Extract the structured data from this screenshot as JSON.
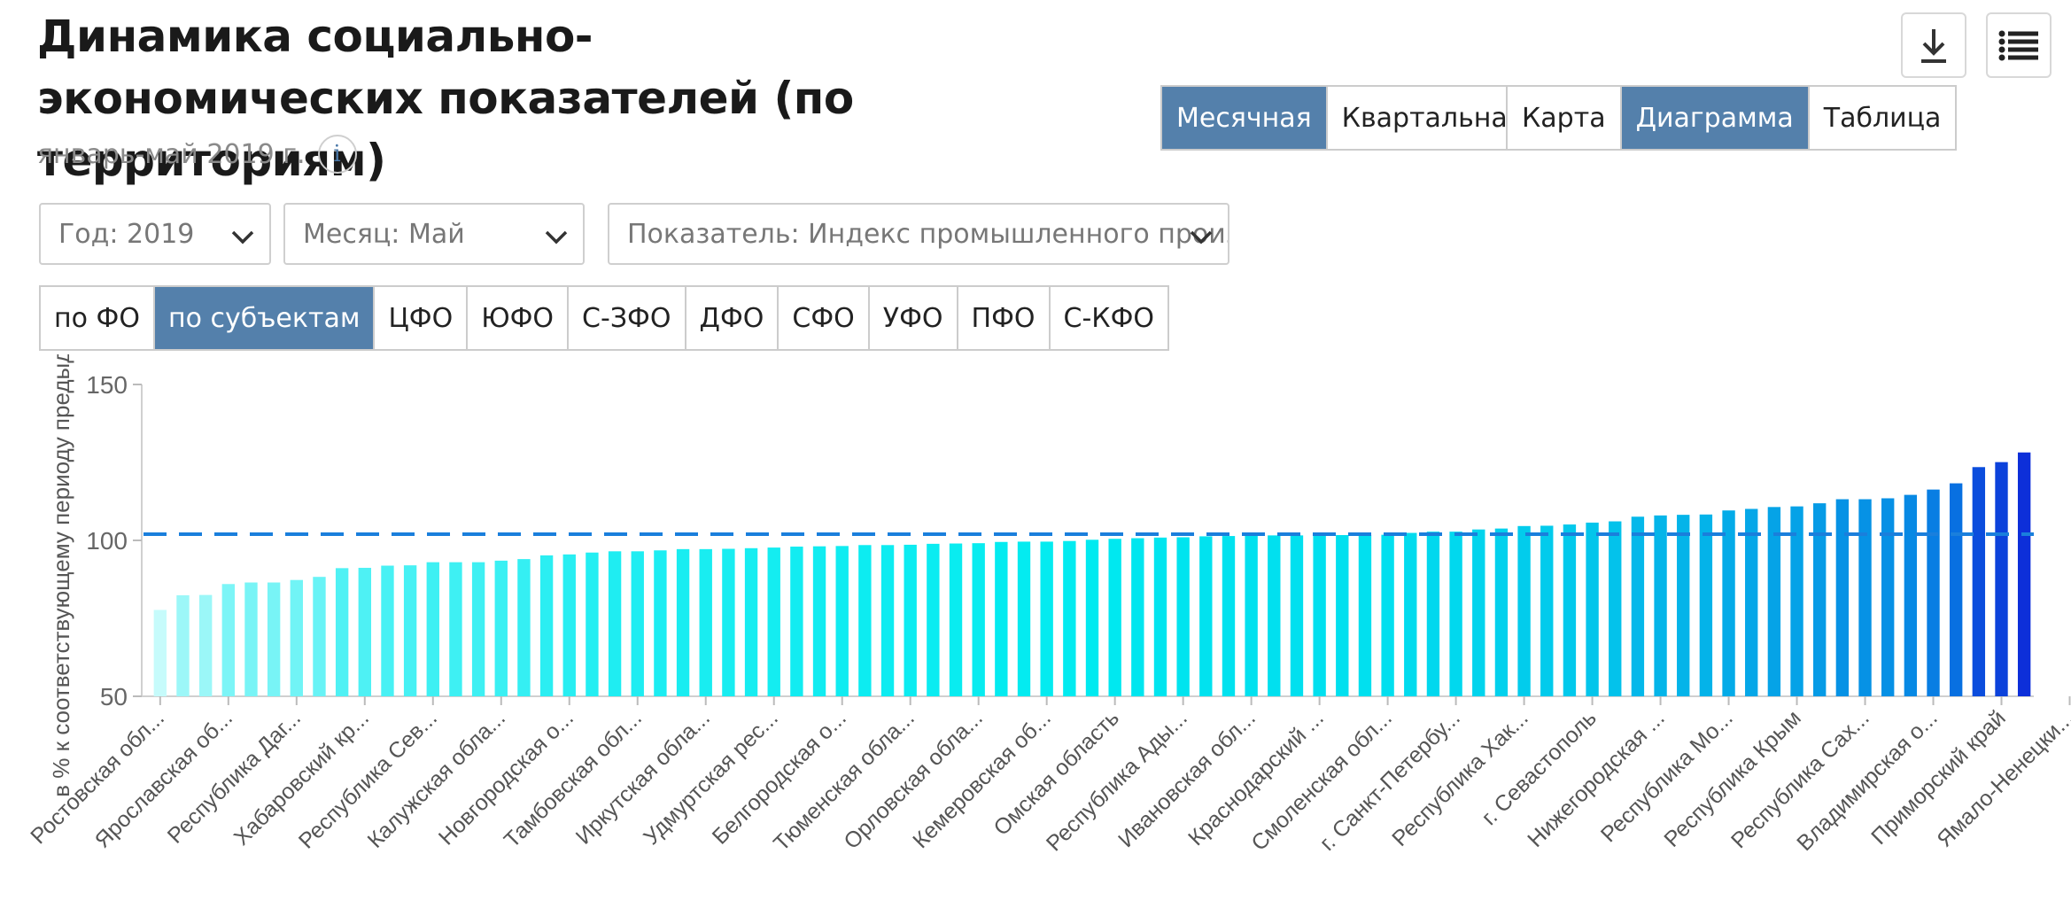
{
  "header": {
    "title": "Динамика социально-экономических показателей (по территориям)",
    "period": "январь-май 2019 г.",
    "info_glyph": "i"
  },
  "toolbar": {
    "download_icon": "download-icon",
    "menu_icon": "list-menu-icon"
  },
  "periodicity": {
    "options": [
      "Месячная",
      "Квартальная"
    ],
    "selected": "Месячная"
  },
  "view": {
    "options": [
      "Карта",
      "Диаграмма",
      "Таблица"
    ],
    "selected": "Диаграмма"
  },
  "filters": {
    "year": "Год: 2019",
    "month": "Месяц: Май",
    "indicator": "Показатель: Индекс промышленного произ"
  },
  "districts": {
    "options": [
      "по ФО",
      "по субъектам",
      "ЦФО",
      "ЮФО",
      "С-ЗФО",
      "ДФО",
      "СФО",
      "УФО",
      "ПФО",
      "С-КФО"
    ],
    "selected": "по субъектам"
  },
  "colors": {
    "accent": "#5480ab",
    "reference_line": "#1a7fdc",
    "bar_low": "#ccfbfb",
    "bar_mid": "#00ebf0",
    "bar_high": "#0d2fd9"
  },
  "chart_data": {
    "type": "bar",
    "ylabel": "в % к соответствующему периоду предыдущ",
    "ylim": [
      50,
      150
    ],
    "yticks": [
      50,
      100,
      150
    ],
    "reference_line": 102,
    "x_tick_labels": [
      "Ростовская обл...",
      "Ярославская об...",
      "Республика Даг...",
      "Хабаровский кр...",
      "Республика Сев...",
      "Калужская обла...",
      "Новгородская о...",
      "Тамбовская обл...",
      "Иркутская обла...",
      "Удмуртская рес...",
      "Белгородская о...",
      "Тюменская обла...",
      "Орловская обла...",
      "Кемеровская об...",
      "Омская область",
      "Республика Ады...",
      "Ивановская обл...",
      "Краснодарский ...",
      "Смоленская обл...",
      "г. Санкт-Петербу...",
      "Республика Хак...",
      "г. Севастополь",
      "Нижегородская ...",
      "Республика Мо...",
      "Республика Крым",
      "Республика Сах...",
      "Владимирская о...",
      "Приморский край",
      "Ямало-Ненецки..."
    ],
    "values": [
      77.7,
      82.4,
      82.5,
      86.0,
      86.5,
      86.5,
      87.3,
      88.3,
      91.1,
      91.2,
      91.9,
      92.0,
      93.0,
      93.0,
      93.0,
      93.5,
      94.0,
      95.2,
      95.5,
      96.1,
      96.5,
      96.5,
      96.8,
      97.2,
      97.2,
      97.3,
      97.5,
      97.7,
      98.0,
      98.1,
      98.2,
      98.5,
      98.5,
      98.6,
      98.9,
      99.0,
      99.1,
      99.5,
      99.6,
      99.6,
      99.8,
      100.2,
      100.5,
      100.7,
      100.9,
      101.0,
      101.3,
      101.4,
      101.5,
      101.6,
      101.6,
      101.6,
      101.7,
      101.7,
      101.8,
      102.4,
      102.8,
      102.8,
      103.5,
      103.8,
      104.6,
      104.7,
      105.1,
      105.7,
      106.1,
      107.6,
      108.0,
      108.2,
      108.3,
      109.6,
      110.1,
      110.7,
      110.9,
      111.9,
      113.2,
      113.2,
      113.5,
      114.6,
      116.3,
      118.3,
      123.5,
      125.1,
      128.2
    ]
  }
}
